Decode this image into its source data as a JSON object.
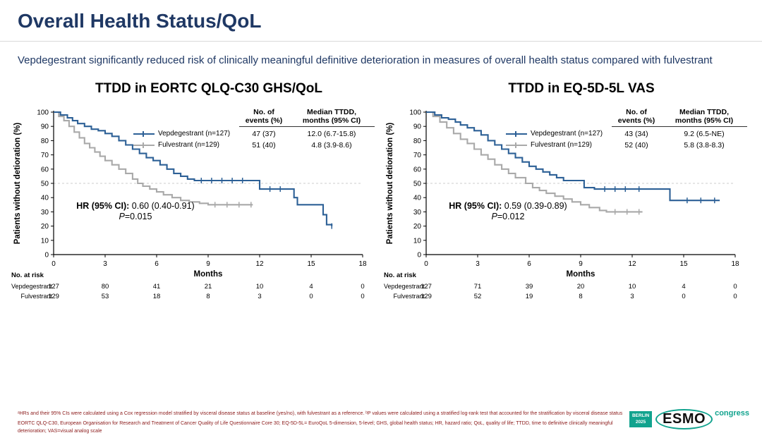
{
  "header": {
    "title": "Overall Health Status/QoL",
    "subtitle": "Vepdegestrant significantly reduced risk of clinically meaningful definitive deterioration in measures of overall health status compared with fulvestrant"
  },
  "chart_data": [
    {
      "type": "line",
      "title": "TTDD in EORTC QLQ-C30 GHS/QoL",
      "xlabel": "Months",
      "ylabel": "Patients without detioration (%)",
      "xlim": [
        0,
        18
      ],
      "ylim": [
        0,
        100
      ],
      "xticks": [
        0,
        3,
        6,
        9,
        12,
        15,
        18
      ],
      "yticks": [
        0,
        10,
        20,
        30,
        40,
        50,
        60,
        70,
        80,
        90,
        100
      ],
      "reference_line_y": 50,
      "grid": false,
      "legend_position": "top-right",
      "stats_header": {
        "events": "No. of\nevents (%)",
        "median": "Median TTDD,\nmonths (95% CI)"
      },
      "series": [
        {
          "name": "Vepdegestrant (n=127)",
          "color": "#2d6096",
          "events": "47 (37)",
          "median": "12.0 (6.7-15.8)",
          "steps": [
            [
              0,
              100
            ],
            [
              0.4,
              98
            ],
            [
              0.8,
              96
            ],
            [
              1.1,
              94
            ],
            [
              1.4,
              92
            ],
            [
              1.8,
              90
            ],
            [
              2.2,
              88
            ],
            [
              2.6,
              87
            ],
            [
              3.0,
              85
            ],
            [
              3.4,
              83
            ],
            [
              3.8,
              80
            ],
            [
              4.2,
              77
            ],
            [
              4.6,
              74
            ],
            [
              5.0,
              71
            ],
            [
              5.4,
              68
            ],
            [
              5.8,
              66
            ],
            [
              6.2,
              63
            ],
            [
              6.6,
              60
            ],
            [
              7.0,
              57
            ],
            [
              7.4,
              55
            ],
            [
              7.8,
              53
            ],
            [
              8.2,
              52
            ],
            [
              11.8,
              52
            ],
            [
              12.0,
              46
            ],
            [
              13.8,
              46
            ],
            [
              14.0,
              40
            ],
            [
              14.2,
              35
            ],
            [
              15.5,
              35
            ],
            [
              15.7,
              28
            ],
            [
              15.9,
              21
            ],
            [
              16.2,
              20
            ]
          ],
          "censors": [
            [
              8.6,
              52
            ],
            [
              9.2,
              52
            ],
            [
              9.8,
              52
            ],
            [
              10.4,
              52
            ],
            [
              11.0,
              52
            ],
            [
              12.6,
              46
            ],
            [
              13.2,
              46
            ],
            [
              16.2,
              20
            ]
          ]
        },
        {
          "name": "Fulvestrant (n=129)",
          "color": "#a9a9a9",
          "events": "51 (40)",
          "median": "4.8 (3.9-8.6)",
          "steps": [
            [
              0,
              100
            ],
            [
              0.3,
              97
            ],
            [
              0.6,
              94
            ],
            [
              0.9,
              90
            ],
            [
              1.2,
              86
            ],
            [
              1.5,
              82
            ],
            [
              1.8,
              78
            ],
            [
              2.1,
              75
            ],
            [
              2.4,
              72
            ],
            [
              2.7,
              69
            ],
            [
              3.0,
              66
            ],
            [
              3.4,
              63
            ],
            [
              3.8,
              60
            ],
            [
              4.2,
              57
            ],
            [
              4.6,
              53
            ],
            [
              4.9,
              50
            ],
            [
              5.2,
              48
            ],
            [
              5.6,
              46
            ],
            [
              6.0,
              44
            ],
            [
              6.4,
              42
            ],
            [
              6.9,
              40
            ],
            [
              7.4,
              38
            ],
            [
              7.9,
              37
            ],
            [
              8.5,
              36
            ],
            [
              9.0,
              35
            ],
            [
              11.6,
              35
            ]
          ],
          "censors": [
            [
              9.4,
              35
            ],
            [
              10.1,
              35
            ],
            [
              10.8,
              35
            ],
            [
              11.5,
              35
            ]
          ]
        }
      ],
      "hr": {
        "label": "HR (95% CI):",
        "value": "0.60 (0.40-0.91)",
        "p_italic": "P",
        "p_rest": "=0.015"
      },
      "risk_table": {
        "title": "No. at risk",
        "rows": [
          {
            "label": "Vepdegestrant",
            "values": [
              127,
              80,
              41,
              21,
              10,
              4,
              0
            ]
          },
          {
            "label": "Fulvestrant",
            "values": [
              129,
              53,
              18,
              8,
              3,
              0,
              0
            ]
          }
        ]
      }
    },
    {
      "type": "line",
      "title": "TTDD in EQ-5D-5L VAS",
      "xlabel": "Months",
      "ylabel": "Patients without detioration (%)",
      "xlim": [
        0,
        18
      ],
      "ylim": [
        0,
        100
      ],
      "xticks": [
        0,
        3,
        6,
        9,
        12,
        15,
        18
      ],
      "yticks": [
        0,
        10,
        20,
        30,
        40,
        50,
        60,
        70,
        80,
        90,
        100
      ],
      "reference_line_y": 50,
      "grid": false,
      "legend_position": "top-right",
      "stats_header": {
        "events": "No. of\nevents (%)",
        "median": "Median TTDD,\nmonths (95% CI)"
      },
      "series": [
        {
          "name": "Vepdegestrant (n=127)",
          "color": "#2d6096",
          "events": "43 (34)",
          "median": "9.2 (6.5-NE)",
          "steps": [
            [
              0,
              100
            ],
            [
              0.5,
              98
            ],
            [
              0.9,
              96
            ],
            [
              1.3,
              95
            ],
            [
              1.7,
              93
            ],
            [
              2.0,
              91
            ],
            [
              2.4,
              89
            ],
            [
              2.8,
              87
            ],
            [
              3.2,
              84
            ],
            [
              3.6,
              80
            ],
            [
              4.0,
              77
            ],
            [
              4.4,
              74
            ],
            [
              4.8,
              71
            ],
            [
              5.2,
              68
            ],
            [
              5.6,
              65
            ],
            [
              6.0,
              62
            ],
            [
              6.4,
              60
            ],
            [
              6.8,
              58
            ],
            [
              7.2,
              56
            ],
            [
              7.6,
              54
            ],
            [
              8.0,
              52
            ],
            [
              9.2,
              47
            ],
            [
              9.8,
              46
            ],
            [
              13.9,
              46
            ],
            [
              14.2,
              38
            ],
            [
              17.1,
              38
            ]
          ],
          "censors": [
            [
              10.4,
              46
            ],
            [
              11.0,
              46
            ],
            [
              11.6,
              46
            ],
            [
              12.4,
              46
            ],
            [
              15.2,
              38
            ],
            [
              16.0,
              38
            ],
            [
              16.8,
              38
            ]
          ]
        },
        {
          "name": "Fulvestrant (n=129)",
          "color": "#a9a9a9",
          "events": "52 (40)",
          "median": "5.8 (3.8-8.3)",
          "steps": [
            [
              0,
              100
            ],
            [
              0.4,
              97
            ],
            [
              0.8,
              93
            ],
            [
              1.2,
              89
            ],
            [
              1.6,
              85
            ],
            [
              2.0,
              81
            ],
            [
              2.4,
              78
            ],
            [
              2.8,
              74
            ],
            [
              3.2,
              70
            ],
            [
              3.6,
              67
            ],
            [
              4.0,
              63
            ],
            [
              4.4,
              60
            ],
            [
              4.8,
              57
            ],
            [
              5.2,
              54
            ],
            [
              5.8,
              50
            ],
            [
              6.2,
              47
            ],
            [
              6.6,
              45
            ],
            [
              7.0,
              43
            ],
            [
              7.5,
              41
            ],
            [
              8.0,
              39
            ],
            [
              8.5,
              37
            ],
            [
              9.0,
              35
            ],
            [
              9.5,
              33
            ],
            [
              10.1,
              31
            ],
            [
              10.5,
              30
            ],
            [
              12.6,
              30
            ]
          ],
          "censors": [
            [
              11.0,
              30
            ],
            [
              11.7,
              30
            ],
            [
              12.4,
              30
            ]
          ]
        }
      ],
      "hr": {
        "label": "HR (95% CI):",
        "value": "0.59 (0.39-0.89)",
        "p_italic": "P",
        "p_rest": "=0.012"
      },
      "risk_table": {
        "title": "No. at risk",
        "rows": [
          {
            "label": "Vepdegestrant",
            "values": [
              127,
              71,
              39,
              20,
              10,
              4,
              0
            ]
          },
          {
            "label": "Fulvestrant",
            "values": [
              129,
              52,
              19,
              8,
              3,
              0,
              0
            ]
          }
        ]
      }
    }
  ],
  "footnotes": [
    "ᵃHRs and their 95% CIs were calculated using a Cox regression model stratified by visceral disease status at baseline (yes/no), with fulvestrant as a reference. ᵇP values were calculated using a stratified log-rank test that accounted for the stratification by visceral disease status",
    "EORTC QLQ-C30, European Organisation for Research and Treatment of Cancer Quality of Life Questionnaire Core 30; EQ-5D-5L= EuroQoL 5-dimension, 5-level; GHS, global health status; HR, hazard ratio; QoL, quality of life; TTDD, time to definitive clinically meaningful deterioration; VAS=visual analog scale"
  ],
  "logo": {
    "badge_line1": "BERLIN",
    "badge_line2": "2025",
    "esmo": "ESMO",
    "congress": "congress"
  },
  "colors": {
    "title_navy": "#1f3864",
    "series_blue": "#2d6096",
    "series_gray": "#a9a9a9",
    "footnote_red": "#8b1a1a",
    "esmo_teal": "#11a38e",
    "reference_line": "#cccccc"
  }
}
